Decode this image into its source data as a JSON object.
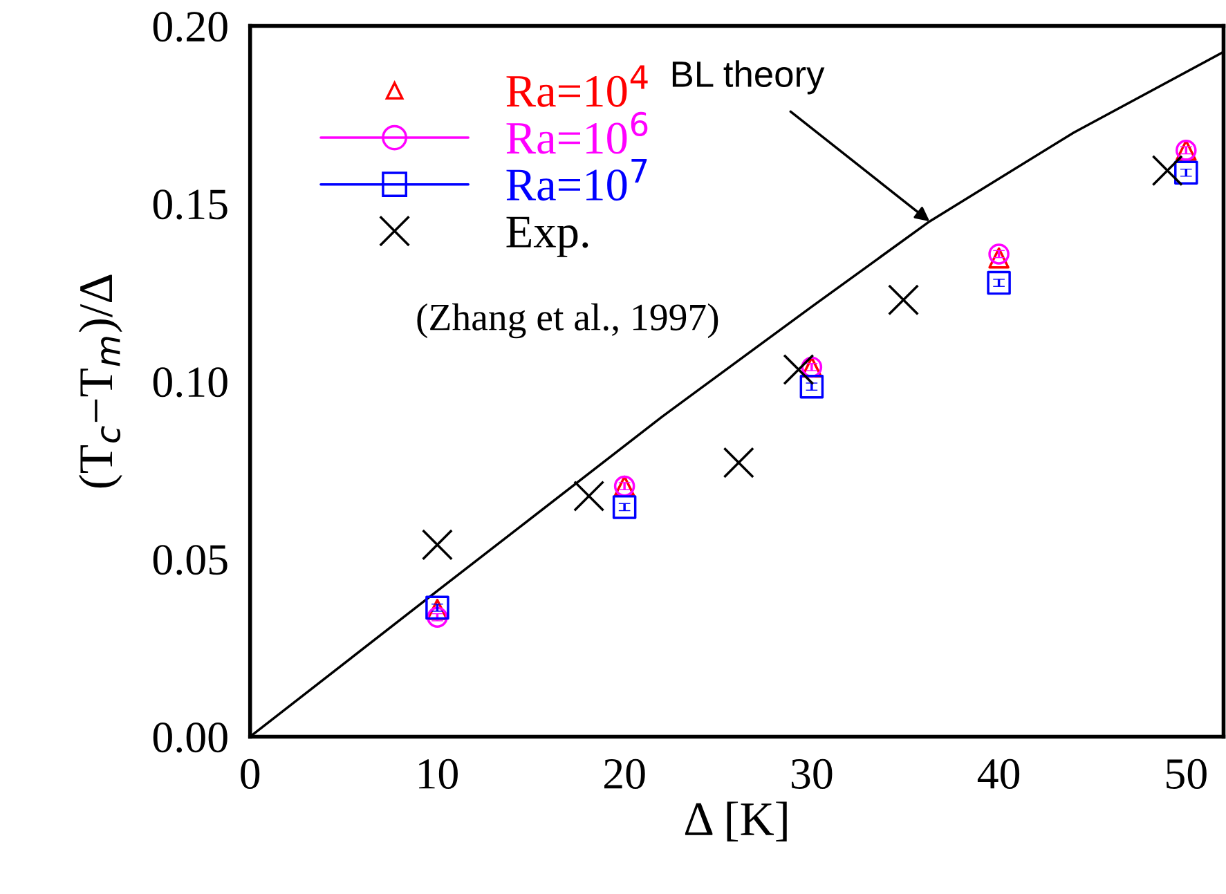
{
  "chart_data": {
    "type": "scatter",
    "xlabel": "Δ [K]",
    "ylabel": "(T$_{c}$−T$_{m}$)/Δ",
    "xlim": [
      0,
      52
    ],
    "xticks": [
      0,
      10,
      20,
      30,
      40,
      50
    ],
    "ylim": [
      0,
      0.2
    ],
    "yticks": [
      {
        "value": 0,
        "label": "0.00"
      },
      {
        "value": 0.05,
        "label": "0.05"
      },
      {
        "value": 0.1,
        "label": "0.10"
      },
      {
        "value": 0.15,
        "label": "0.15"
      },
      {
        "value": 0.2,
        "label": "0.20"
      }
    ],
    "grid": false,
    "legend": "top left",
    "series": [
      {
        "type": "line",
        "color": "#000000",
        "x": [
          0,
          10,
          22,
          30,
          36.3,
          44,
          52
        ],
        "values": [
          0,
          0.041,
          0.09,
          0.121,
          0.145,
          0.17,
          0.1927
        ],
        "marker": "none",
        "line_style": "solid"
      },
      {
        "name": "Ra=10$^{4}$",
        "color": "#ff0000",
        "marker": "triangle",
        "x": [
          10,
          20,
          30,
          40,
          50
        ],
        "values": [
          0.0358,
          0.0705,
          0.104,
          0.1347,
          0.165
        ]
      },
      {
        "name": "Ra=10$^{6}$",
        "color": "#ff00ff",
        "marker": "circle",
        "x": [
          10,
          20,
          30,
          40,
          50
        ],
        "values": [
          0.0336,
          0.0705,
          0.104,
          0.1358,
          0.165
        ],
        "errors": [
          0.001,
          0.001,
          0.001,
          0.001,
          0.001
        ]
      },
      {
        "name": "Ra=10$^{7}$",
        "color": "#0000ff",
        "marker": "square",
        "x": [
          10,
          20,
          30,
          40,
          50
        ],
        "values": [
          0.0363,
          0.0646,
          0.0985,
          0.1277,
          0.1587
        ],
        "errors": [
          0.001,
          0.001,
          0.001,
          0.001,
          0.001
        ]
      },
      {
        "name": "Exp.",
        "color": "#000000",
        "marker": "cross",
        "x": [
          10,
          18.1,
          26.1,
          29.3,
          34.9,
          49.0
        ],
        "values": [
          0.054,
          0.0677,
          0.0771,
          0.1033,
          0.1229,
          0.1593
        ]
      }
    ],
    "annotations": [
      {
        "text": "BL theory",
        "x": 36.3,
        "y": 0.145
      },
      "(Zhang et al., 1997)"
    ]
  }
}
